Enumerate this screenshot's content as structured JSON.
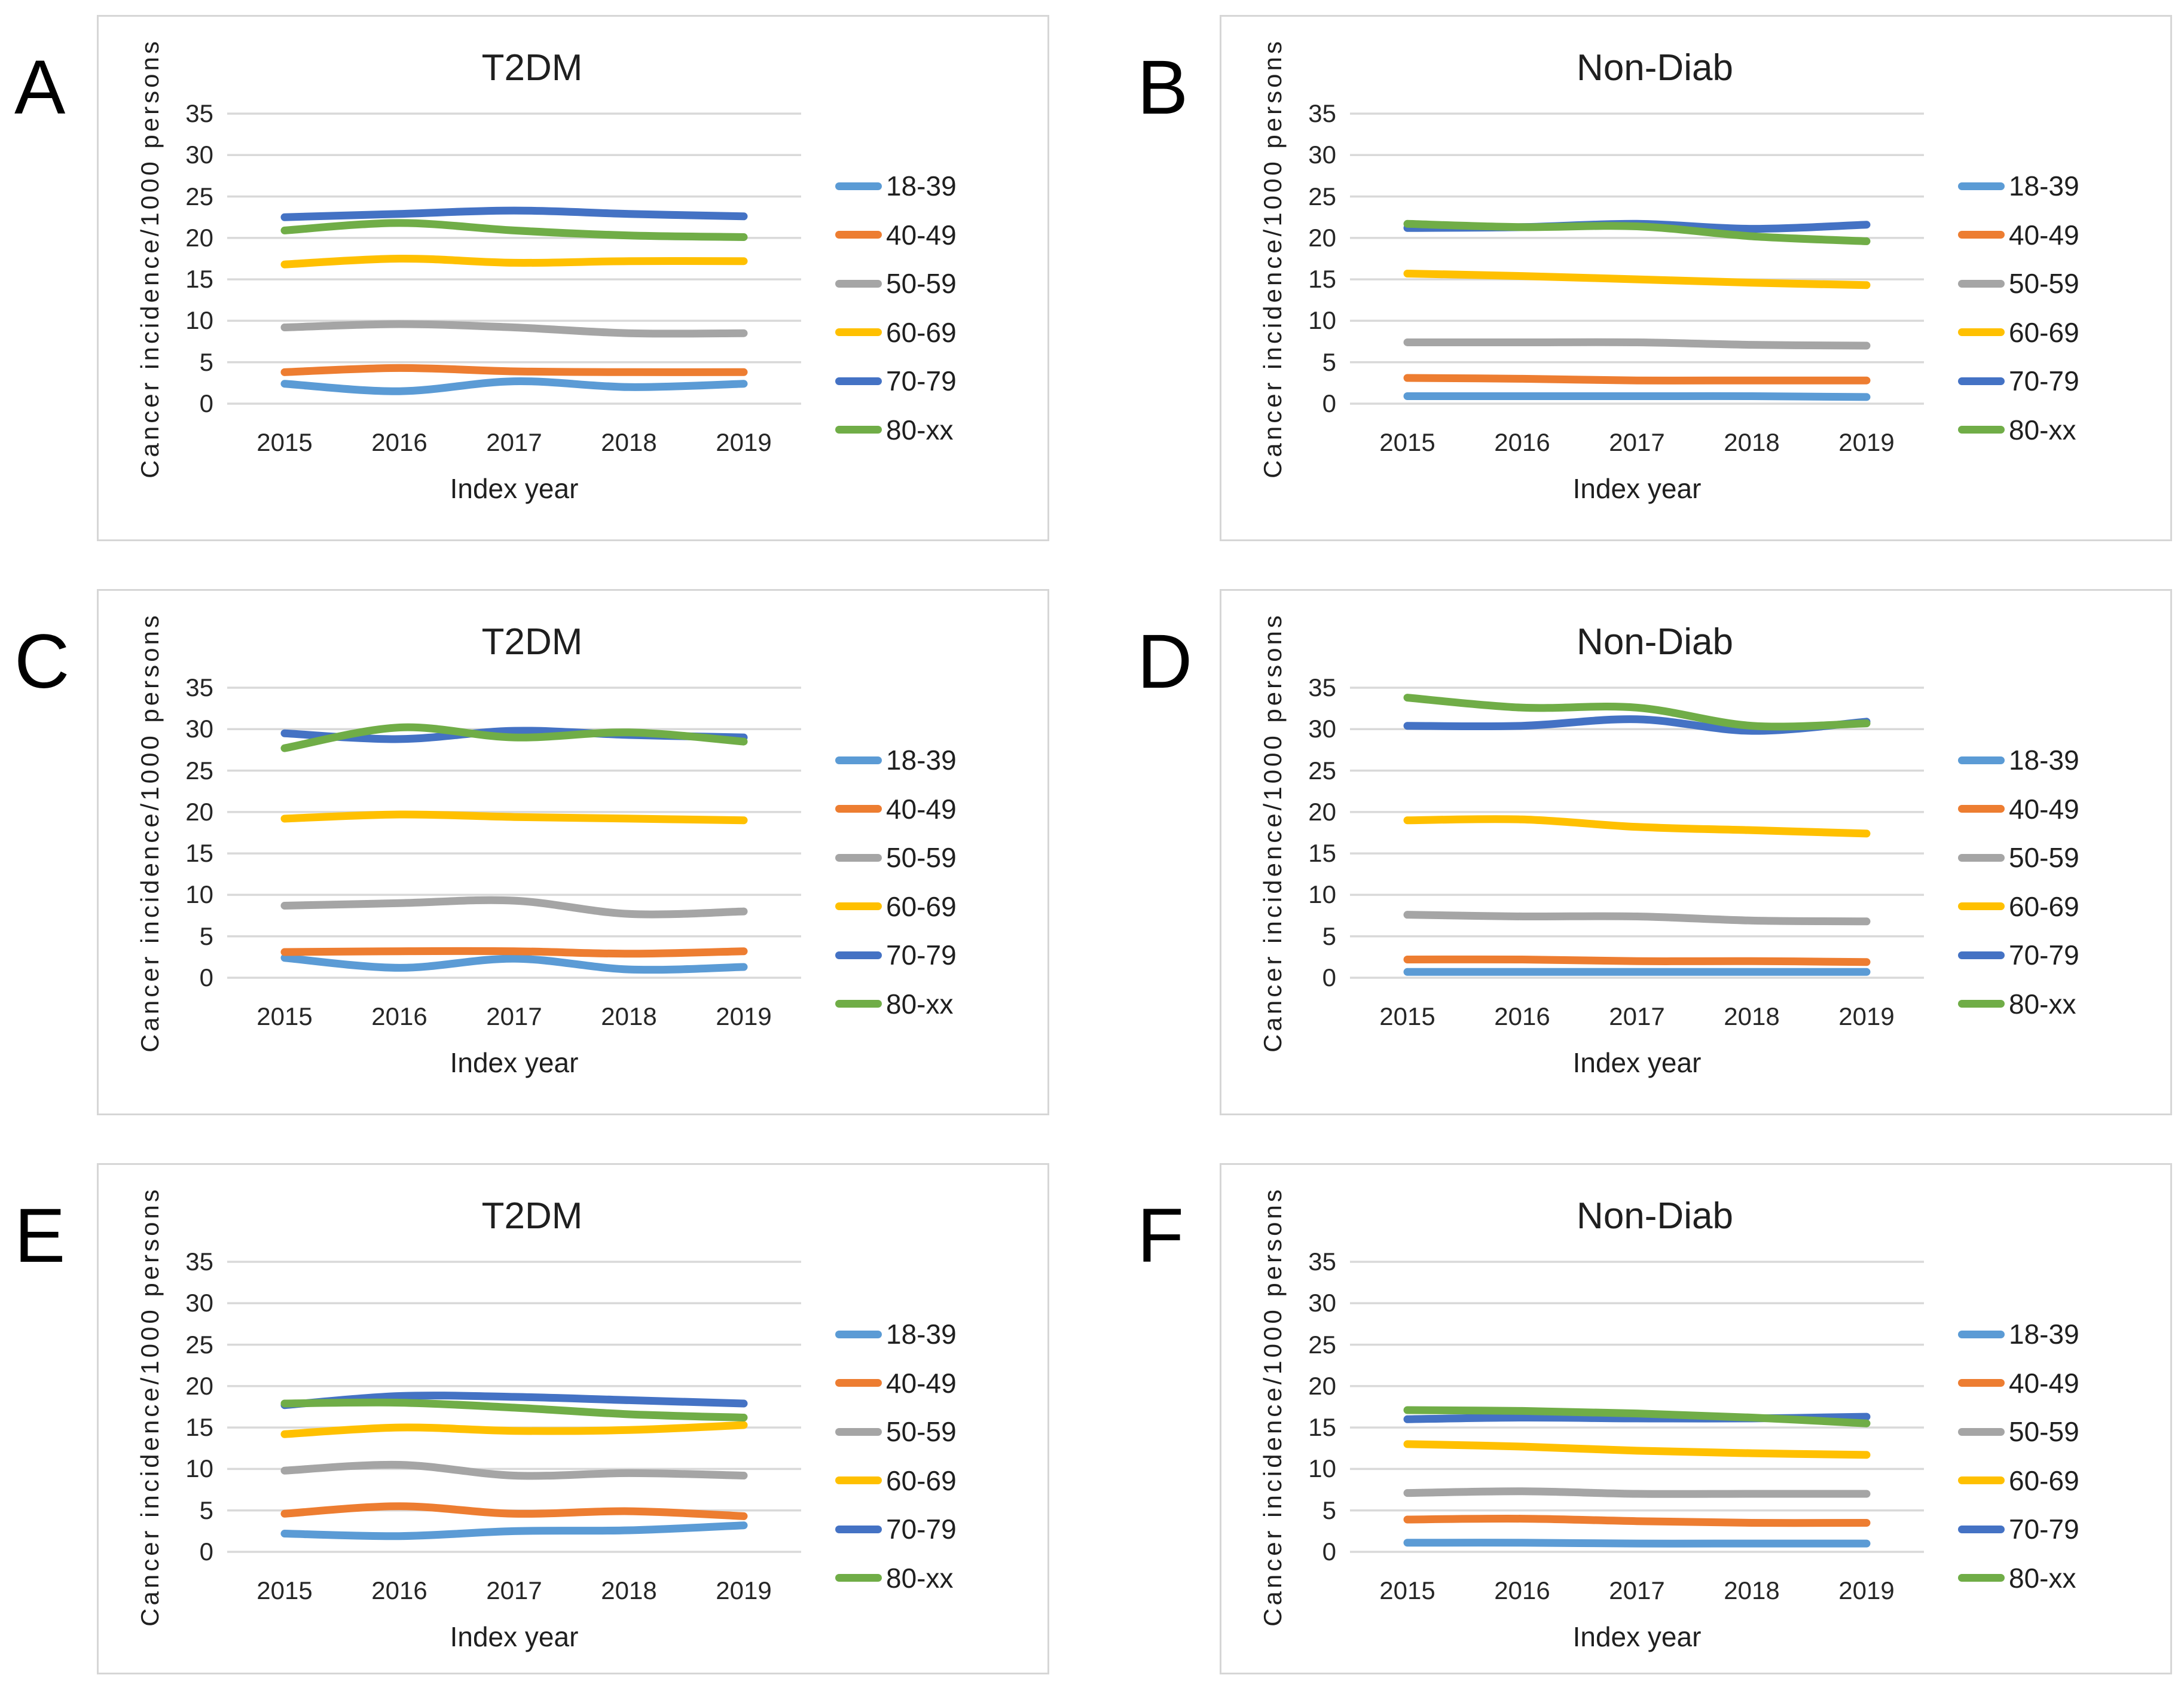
{
  "figure": {
    "panel_letters": [
      "A",
      "B",
      "C",
      "D",
      "E",
      "F"
    ],
    "left_column_title": "T2DM",
    "right_column_title": "Non-Diab"
  },
  "style": {
    "grid_color": "#d9d9d9",
    "border_color": "#d6d6d6",
    "text_color": "#1f1f1f",
    "series_colors": {
      "18-39": "#5b9bd5",
      "40-49": "#ed7d31",
      "50-59": "#a5a5a5",
      "60-69": "#ffc000",
      "70-79": "#4472c4",
      "80-xx": "#70ad47"
    }
  },
  "chart_data": [
    {
      "letter": "A",
      "type": "line",
      "title": "T2DM",
      "xlabel": "Index year",
      "ylabel": "Cancer incidence/1000 persons",
      "x": [
        2015,
        2016,
        2017,
        2018,
        2019
      ],
      "ylim": [
        0,
        35
      ],
      "yticks": [
        35,
        30,
        25,
        20,
        15,
        10,
        5,
        0
      ],
      "grid": "horizontal",
      "legend_position": "right",
      "series": [
        {
          "name": "18-39",
          "values": [
            2.4,
            1.5,
            2.7,
            2.0,
            2.4
          ]
        },
        {
          "name": "40-49",
          "values": [
            3.8,
            4.3,
            3.9,
            3.8,
            3.8
          ]
        },
        {
          "name": "50-59",
          "values": [
            9.2,
            9.6,
            9.2,
            8.5,
            8.5
          ]
        },
        {
          "name": "60-69",
          "values": [
            16.8,
            17.5,
            17.0,
            17.2,
            17.2
          ]
        },
        {
          "name": "70-79",
          "values": [
            22.5,
            22.9,
            23.3,
            22.9,
            22.6
          ]
        },
        {
          "name": "80-xx",
          "values": [
            20.9,
            21.8,
            20.9,
            20.3,
            20.1
          ]
        }
      ]
    },
    {
      "letter": "B",
      "type": "line",
      "title": "Non-Diab",
      "xlabel": "Index year",
      "ylabel": "Cancer incidence/1000 persons",
      "x": [
        2015,
        2016,
        2017,
        2018,
        2019
      ],
      "ylim": [
        0,
        35
      ],
      "yticks": [
        35,
        30,
        25,
        20,
        15,
        10,
        5,
        0
      ],
      "grid": "horizontal",
      "legend_position": "right",
      "series": [
        {
          "name": "18-39",
          "values": [
            0.9,
            0.9,
            0.9,
            0.9,
            0.8
          ]
        },
        {
          "name": "40-49",
          "values": [
            3.1,
            3.0,
            2.8,
            2.8,
            2.8
          ]
        },
        {
          "name": "50-59",
          "values": [
            7.4,
            7.4,
            7.4,
            7.1,
            7.0
          ]
        },
        {
          "name": "60-69",
          "values": [
            15.7,
            15.4,
            15.0,
            14.6,
            14.3
          ]
        },
        {
          "name": "70-79",
          "values": [
            21.2,
            21.3,
            21.7,
            21.1,
            21.6
          ]
        },
        {
          "name": "80-xx",
          "values": [
            21.7,
            21.3,
            21.4,
            20.2,
            19.6
          ]
        }
      ]
    },
    {
      "letter": "C",
      "type": "line",
      "title": "T2DM",
      "xlabel": "Index year",
      "ylabel": "Cancer incidence/1000 persons",
      "x": [
        2015,
        2016,
        2017,
        2018,
        2019
      ],
      "ylim": [
        0,
        35
      ],
      "yticks": [
        35,
        30,
        25,
        20,
        15,
        10,
        5,
        0
      ],
      "grid": "horizontal",
      "legend_position": "right",
      "series": [
        {
          "name": "18-39",
          "values": [
            2.4,
            1.2,
            2.3,
            1.0,
            1.3
          ]
        },
        {
          "name": "40-49",
          "values": [
            3.1,
            3.2,
            3.2,
            2.9,
            3.2
          ]
        },
        {
          "name": "50-59",
          "values": [
            8.7,
            9.0,
            9.3,
            7.7,
            8.0
          ]
        },
        {
          "name": "60-69",
          "values": [
            19.2,
            19.7,
            19.4,
            19.2,
            19.0
          ]
        },
        {
          "name": "70-79",
          "values": [
            29.5,
            28.8,
            29.8,
            29.3,
            29.0
          ]
        },
        {
          "name": "80-xx",
          "values": [
            27.7,
            30.2,
            29.0,
            29.6,
            28.5
          ]
        }
      ]
    },
    {
      "letter": "D",
      "type": "line",
      "title": "Non-Diab",
      "xlabel": "Index year",
      "ylabel": "Cancer incidence/1000 persons",
      "x": [
        2015,
        2016,
        2017,
        2018,
        2019
      ],
      "ylim": [
        0,
        35
      ],
      "yticks": [
        35,
        30,
        25,
        20,
        15,
        10,
        5,
        0
      ],
      "grid": "horizontal",
      "legend_position": "right",
      "series": [
        {
          "name": "18-39",
          "values": [
            0.7,
            0.7,
            0.7,
            0.7,
            0.7
          ]
        },
        {
          "name": "40-49",
          "values": [
            2.2,
            2.2,
            2.0,
            2.0,
            1.9
          ]
        },
        {
          "name": "50-59",
          "values": [
            7.6,
            7.4,
            7.4,
            6.9,
            6.8
          ]
        },
        {
          "name": "60-69",
          "values": [
            19.0,
            19.1,
            18.2,
            17.8,
            17.4
          ]
        },
        {
          "name": "70-79",
          "values": [
            30.4,
            30.4,
            31.2,
            29.8,
            30.9
          ]
        },
        {
          "name": "80-xx",
          "values": [
            33.8,
            32.6,
            32.6,
            30.4,
            30.7
          ]
        }
      ]
    },
    {
      "letter": "E",
      "type": "line",
      "title": "T2DM",
      "xlabel": "Index year",
      "ylabel": "Cancer incidence/1000 persons",
      "x": [
        2015,
        2016,
        2017,
        2018,
        2019
      ],
      "ylim": [
        0,
        35
      ],
      "yticks": [
        35,
        30,
        25,
        20,
        15,
        10,
        5,
        0
      ],
      "grid": "horizontal",
      "legend_position": "right",
      "series": [
        {
          "name": "18-39",
          "values": [
            2.2,
            1.9,
            2.5,
            2.6,
            3.2
          ]
        },
        {
          "name": "40-49",
          "values": [
            4.6,
            5.5,
            4.6,
            4.9,
            4.3
          ]
        },
        {
          "name": "50-59",
          "values": [
            9.8,
            10.5,
            9.2,
            9.5,
            9.2
          ]
        },
        {
          "name": "60-69",
          "values": [
            14.2,
            15.0,
            14.6,
            14.7,
            15.3
          ]
        },
        {
          "name": "70-79",
          "values": [
            17.7,
            18.8,
            18.7,
            18.3,
            17.9
          ]
        },
        {
          "name": "80-xx",
          "values": [
            17.9,
            18.0,
            17.4,
            16.6,
            16.2
          ]
        }
      ]
    },
    {
      "letter": "F",
      "type": "line",
      "title": "Non-Diab",
      "xlabel": "Index year",
      "ylabel": "Cancer incidence/1000 persons",
      "x": [
        2015,
        2016,
        2017,
        2018,
        2019
      ],
      "ylim": [
        0,
        35
      ],
      "yticks": [
        35,
        30,
        25,
        20,
        15,
        10,
        5,
        0
      ],
      "grid": "horizontal",
      "legend_position": "right",
      "series": [
        {
          "name": "18-39",
          "values": [
            1.1,
            1.1,
            1.0,
            1.0,
            1.0
          ]
        },
        {
          "name": "40-49",
          "values": [
            3.9,
            4.0,
            3.7,
            3.5,
            3.5
          ]
        },
        {
          "name": "50-59",
          "values": [
            7.1,
            7.3,
            7.0,
            7.0,
            7.0
          ]
        },
        {
          "name": "60-69",
          "values": [
            13.0,
            12.7,
            12.2,
            11.9,
            11.7
          ]
        },
        {
          "name": "70-79",
          "values": [
            16.0,
            16.2,
            16.1,
            16.1,
            16.3
          ]
        },
        {
          "name": "80-xx",
          "values": [
            17.1,
            17.0,
            16.7,
            16.2,
            15.5
          ]
        }
      ]
    }
  ]
}
